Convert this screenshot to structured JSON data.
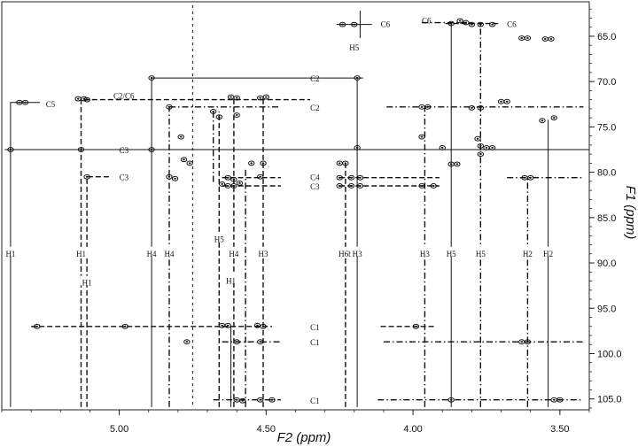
{
  "chart_data": {
    "type": "scatter",
    "title": "",
    "xlabel": "F2 (ppm)",
    "ylabel": "F1 (ppm)",
    "xlim": [
      5.4,
      3.4
    ],
    "ylim": [
      61.2,
      106.2
    ],
    "x_reversed": true,
    "y_reversed": true,
    "grid": false,
    "x_ticks": [
      {
        "value": 5.0,
        "label": "5.00"
      },
      {
        "value": 4.5,
        "label": "4.50"
      },
      {
        "value": 4.0,
        "label": "4.00"
      },
      {
        "value": 3.5,
        "label": "3.50"
      }
    ],
    "y_ticks": [
      {
        "value": 65,
        "label": "65.0"
      },
      {
        "value": 70,
        "label": "70.0"
      },
      {
        "value": 75,
        "label": "75.0"
      },
      {
        "value": 80,
        "label": "80.0"
      },
      {
        "value": 85,
        "label": "85.0"
      },
      {
        "value": 90,
        "label": "90.0"
      },
      {
        "value": 95,
        "label": "95.0"
      },
      {
        "value": 100,
        "label": "100.0"
      },
      {
        "value": 105,
        "label": "105.0"
      }
    ],
    "peaks": [
      {
        "x": 4.24,
        "y": 63.7
      },
      {
        "x": 4.2,
        "y": 63.7
      },
      {
        "x": 3.87,
        "y": 63.6
      },
      {
        "x": 3.84,
        "y": 63.3
      },
      {
        "x": 3.82,
        "y": 63.5
      },
      {
        "x": 3.8,
        "y": 63.7
      },
      {
        "x": 3.77,
        "y": 63.7
      },
      {
        "x": 3.73,
        "y": 63.7
      },
      {
        "x": 3.63,
        "y": 65.2
      },
      {
        "x": 3.61,
        "y": 65.2
      },
      {
        "x": 3.55,
        "y": 65.3
      },
      {
        "x": 3.53,
        "y": 65.3
      },
      {
        "x": 4.89,
        "y": 69.6
      },
      {
        "x": 4.19,
        "y": 69.6
      },
      {
        "x": 5.34,
        "y": 72.3
      },
      {
        "x": 5.32,
        "y": 72.3
      },
      {
        "x": 5.14,
        "y": 71.9
      },
      {
        "x": 5.12,
        "y": 71.9
      },
      {
        "x": 5.11,
        "y": 72.0
      },
      {
        "x": 4.62,
        "y": 71.7
      },
      {
        "x": 4.6,
        "y": 71.8
      },
      {
        "x": 4.52,
        "y": 71.8
      },
      {
        "x": 4.5,
        "y": 71.7
      },
      {
        "x": 4.83,
        "y": 72.8
      },
      {
        "x": 3.97,
        "y": 72.8
      },
      {
        "x": 3.95,
        "y": 72.8
      },
      {
        "x": 3.8,
        "y": 72.9
      },
      {
        "x": 3.77,
        "y": 72.9
      },
      {
        "x": 3.7,
        "y": 72.2
      },
      {
        "x": 3.68,
        "y": 72.2
      },
      {
        "x": 4.68,
        "y": 73.3
      },
      {
        "x": 4.66,
        "y": 73.9
      },
      {
        "x": 4.6,
        "y": 73.7
      },
      {
        "x": 3.56,
        "y": 74.3
      },
      {
        "x": 3.52,
        "y": 74.0
      },
      {
        "x": 4.79,
        "y": 76.1
      },
      {
        "x": 3.97,
        "y": 76.1
      },
      {
        "x": 3.78,
        "y": 76.3
      },
      {
        "x": 3.77,
        "y": 77.1
      },
      {
        "x": 3.75,
        "y": 77.3
      },
      {
        "x": 3.73,
        "y": 77.3
      },
      {
        "x": 3.77,
        "y": 78.0
      },
      {
        "x": 3.9,
        "y": 77.3
      },
      {
        "x": 4.19,
        "y": 77.3
      },
      {
        "x": 5.37,
        "y": 77.5
      },
      {
        "x": 5.13,
        "y": 77.5
      },
      {
        "x": 4.89,
        "y": 77.5
      },
      {
        "x": 4.78,
        "y": 78.6
      },
      {
        "x": 4.76,
        "y": 79.0
      },
      {
        "x": 4.55,
        "y": 79.0
      },
      {
        "x": 4.51,
        "y": 79.0
      },
      {
        "x": 4.25,
        "y": 79.0
      },
      {
        "x": 4.23,
        "y": 79.0
      },
      {
        "x": 3.87,
        "y": 79.1
      },
      {
        "x": 3.85,
        "y": 79.1
      },
      {
        "x": 5.11,
        "y": 80.5
      },
      {
        "x": 4.83,
        "y": 80.5
      },
      {
        "x": 4.81,
        "y": 80.7
      },
      {
        "x": 4.63,
        "y": 80.6
      },
      {
        "x": 4.61,
        "y": 80.8
      },
      {
        "x": 4.59,
        "y": 81.2
      },
      {
        "x": 4.52,
        "y": 80.5
      },
      {
        "x": 4.25,
        "y": 80.6
      },
      {
        "x": 4.21,
        "y": 80.6
      },
      {
        "x": 4.18,
        "y": 80.6
      },
      {
        "x": 3.62,
        "y": 80.6
      },
      {
        "x": 3.6,
        "y": 80.6
      },
      {
        "x": 4.65,
        "y": 81.3
      },
      {
        "x": 4.63,
        "y": 81.5
      },
      {
        "x": 4.61,
        "y": 81.5
      },
      {
        "x": 4.25,
        "y": 81.5
      },
      {
        "x": 4.21,
        "y": 81.5
      },
      {
        "x": 4.18,
        "y": 81.5
      },
      {
        "x": 3.97,
        "y": 81.5
      },
      {
        "x": 3.93,
        "y": 81.5
      },
      {
        "x": 5.28,
        "y": 97.0
      },
      {
        "x": 4.98,
        "y": 97.0
      },
      {
        "x": 4.65,
        "y": 96.9
      },
      {
        "x": 4.63,
        "y": 96.9
      },
      {
        "x": 4.53,
        "y": 96.9
      },
      {
        "x": 4.51,
        "y": 97.0
      },
      {
        "x": 3.99,
        "y": 97.0
      },
      {
        "x": 4.77,
        "y": 98.7
      },
      {
        "x": 4.6,
        "y": 98.7
      },
      {
        "x": 4.52,
        "y": 98.7
      },
      {
        "x": 3.63,
        "y": 98.7
      },
      {
        "x": 3.61,
        "y": 98.7
      },
      {
        "x": 4.6,
        "y": 105.1
      },
      {
        "x": 4.58,
        "y": 105.2
      },
      {
        "x": 4.52,
        "y": 105.1
      },
      {
        "x": 4.48,
        "y": 105.1
      },
      {
        "x": 3.87,
        "y": 105.1
      },
      {
        "x": 3.52,
        "y": 105.1
      },
      {
        "x": 3.5,
        "y": 105.1
      }
    ],
    "water_streak_x": 4.75,
    "connections": [
      {
        "style": "solid",
        "path": [
          [
            5.37,
            105.9
          ],
          [
            5.37,
            72.3
          ],
          [
            5.27,
            72.3
          ]
        ]
      },
      {
        "style": "solid",
        "path": [
          [
            4.89,
            105.9
          ],
          [
            4.89,
            69.6
          ],
          [
            4.17,
            69.6
          ]
        ]
      },
      {
        "style": "solid",
        "path": [
          [
            5.39,
            77.5
          ],
          [
            3.4,
            77.5
          ]
        ]
      },
      {
        "style": "solid",
        "path": [
          [
            4.19,
            105.9
          ],
          [
            4.19,
            69.6
          ]
        ]
      },
      {
        "style": "solid",
        "path": [
          [
            3.87,
            105.9
          ],
          [
            3.87,
            63.6
          ]
        ]
      },
      {
        "style": "solid",
        "path": [
          [
            3.54,
            105.9
          ],
          [
            3.54,
            74.2
          ]
        ]
      },
      {
        "style": "solid",
        "path": [
          [
            4.62,
            105.9
          ],
          [
            4.62,
            96.9
          ]
        ]
      },
      {
        "style": "solid",
        "path": [
          [
            4.18,
            62.2
          ],
          [
            4.18,
            65.2
          ]
        ]
      },
      {
        "style": "solid",
        "path": [
          [
            4.26,
            63.7
          ],
          [
            4.14,
            63.7
          ]
        ]
      },
      {
        "style": "dashed",
        "path": [
          [
            5.13,
            105.9
          ],
          [
            5.13,
            72.0
          ],
          [
            5.09,
            72.0
          ]
        ]
      },
      {
        "style": "dashed",
        "path": [
          [
            5.11,
            105.9
          ],
          [
            5.11,
            80.5
          ],
          [
            5.03,
            80.5
          ]
        ]
      },
      {
        "style": "dashed",
        "path": [
          [
            5.12,
            72.0
          ],
          [
            4.35,
            72.0
          ]
        ]
      },
      {
        "style": "dashed",
        "path": [
          [
            5.3,
            97.0
          ],
          [
            4.48,
            97.0
          ]
        ]
      },
      {
        "style": "dashed",
        "path": [
          [
            4.11,
            97.0
          ],
          [
            3.92,
            97.0
          ]
        ]
      },
      {
        "style": "dashed",
        "path": [
          [
            4.65,
            81.5
          ],
          [
            4.45,
            81.5
          ]
        ]
      },
      {
        "style": "dashed",
        "path": [
          [
            4.25,
            81.5
          ],
          [
            3.91,
            81.5
          ]
        ]
      },
      {
        "style": "dashed",
        "path": [
          [
            4.25,
            80.6
          ],
          [
            3.91,
            80.6
          ]
        ]
      },
      {
        "style": "dashed",
        "path": [
          [
            4.65,
            80.6
          ],
          [
            4.45,
            80.6
          ]
        ]
      },
      {
        "style": "dashed",
        "path": [
          [
            4.23,
            105.9
          ],
          [
            4.23,
            79.0
          ]
        ]
      },
      {
        "style": "dashed",
        "path": [
          [
            4.66,
            105.9
          ],
          [
            4.66,
            73.3
          ]
        ]
      },
      {
        "style": "dashed",
        "path": [
          [
            4.51,
            105.9
          ],
          [
            4.51,
            71.8
          ]
        ]
      },
      {
        "style": "dashed",
        "path": [
          [
            4.61,
            105.9
          ],
          [
            4.61,
            71.8
          ]
        ]
      },
      {
        "style": "dashed",
        "path": [
          [
            3.89,
            63.6
          ],
          [
            3.71,
            63.6
          ]
        ]
      },
      {
        "style": "dashdot",
        "path": [
          [
            4.83,
            105.9
          ],
          [
            4.83,
            72.8
          ]
        ]
      },
      {
        "style": "dashdot",
        "path": [
          [
            4.83,
            72.8
          ],
          [
            4.45,
            72.8
          ]
        ]
      },
      {
        "style": "dashdot",
        "path": [
          [
            4.09,
            72.8
          ],
          [
            3.42,
            72.8
          ]
        ]
      },
      {
        "style": "dashdot",
        "path": [
          [
            4.1,
            98.7
          ],
          [
            3.42,
            98.7
          ]
        ]
      },
      {
        "style": "dashdot",
        "path": [
          [
            4.65,
            98.7
          ],
          [
            4.45,
            98.7
          ]
        ]
      },
      {
        "style": "dashdot",
        "path": [
          [
            4.12,
            105.1
          ],
          [
            3.42,
            105.1
          ]
        ]
      },
      {
        "style": "dashdot",
        "path": [
          [
            4.68,
            105.1
          ],
          [
            4.45,
            105.1
          ]
        ]
      },
      {
        "style": "dashdot",
        "path": [
          [
            3.96,
            105.9
          ],
          [
            3.96,
            72.8
          ]
        ]
      },
      {
        "style": "dashdot",
        "path": [
          [
            3.77,
            105.9
          ],
          [
            3.77,
            63.7
          ]
        ]
      },
      {
        "style": "dashdot",
        "path": [
          [
            3.61,
            105.9
          ],
          [
            3.61,
            80.6
          ]
        ]
      },
      {
        "style": "dashdot",
        "path": [
          [
            3.68,
            80.6
          ],
          [
            3.42,
            80.6
          ]
        ]
      },
      {
        "style": "dashdot",
        "path": [
          [
            3.97,
            63.5
          ],
          [
            3.8,
            63.5
          ]
        ]
      },
      {
        "style": "dashdot",
        "path": [
          [
            4.68,
            73.3
          ],
          [
            4.68,
            81.3
          ]
        ]
      },
      {
        "style": "dashdot",
        "path": [
          [
            4.57,
            105.9
          ],
          [
            4.57,
            79.5
          ]
        ]
      }
    ],
    "annotations": [
      {
        "text": "C6",
        "x": 4.11,
        "y": 63.7
      },
      {
        "text": "H5",
        "x": 4.2,
        "y": 66.3
      },
      {
        "text": "C6",
        "x": 3.97,
        "y": 63.3
      },
      {
        "text": "C6",
        "x": 3.68,
        "y": 63.7
      },
      {
        "text": "C5",
        "x": 5.25,
        "y": 72.5
      },
      {
        "text": "C2/C6",
        "x": 5.02,
        "y": 71.6
      },
      {
        "text": "C2",
        "x": 4.35,
        "y": 69.7
      },
      {
        "text": "C2",
        "x": 4.35,
        "y": 72.9
      },
      {
        "text": "C3",
        "x": 5.0,
        "y": 77.6
      },
      {
        "text": "C3",
        "x": 5.0,
        "y": 80.6
      },
      {
        "text": "C4",
        "x": 4.35,
        "y": 80.6
      },
      {
        "text": "C3",
        "x": 4.35,
        "y": 81.6
      },
      {
        "text": "C1",
        "x": 4.35,
        "y": 97.1
      },
      {
        "text": "C1",
        "x": 4.35,
        "y": 98.8
      },
      {
        "text": "C1",
        "x": 4.35,
        "y": 105.2
      },
      {
        "text": "H1",
        "x": 5.37,
        "y": 89.0
      },
      {
        "text": "H1",
        "x": 5.13,
        "y": 89.0
      },
      {
        "text": "H1",
        "x": 5.11,
        "y": 92.2
      },
      {
        "text": "H4",
        "x": 4.89,
        "y": 89.0
      },
      {
        "text": "H4",
        "x": 4.83,
        "y": 89.0
      },
      {
        "text": "H5",
        "x": 4.66,
        "y": 87.4
      },
      {
        "text": "H1",
        "x": 4.62,
        "y": 92.0
      },
      {
        "text": "H4",
        "x": 4.61,
        "y": 89.0
      },
      {
        "text": "H3",
        "x": 4.51,
        "y": 89.0
      },
      {
        "text": "H6b",
        "x": 4.23,
        "y": 89.0
      },
      {
        "text": "H3",
        "x": 4.19,
        "y": 89.0
      },
      {
        "text": "H3",
        "x": 3.96,
        "y": 89.0
      },
      {
        "text": "H5",
        "x": 3.87,
        "y": 89.0
      },
      {
        "text": "H5",
        "x": 3.77,
        "y": 89.0
      },
      {
        "text": "H2",
        "x": 3.61,
        "y": 89.0
      },
      {
        "text": "H2",
        "x": 3.54,
        "y": 89.0
      }
    ]
  }
}
